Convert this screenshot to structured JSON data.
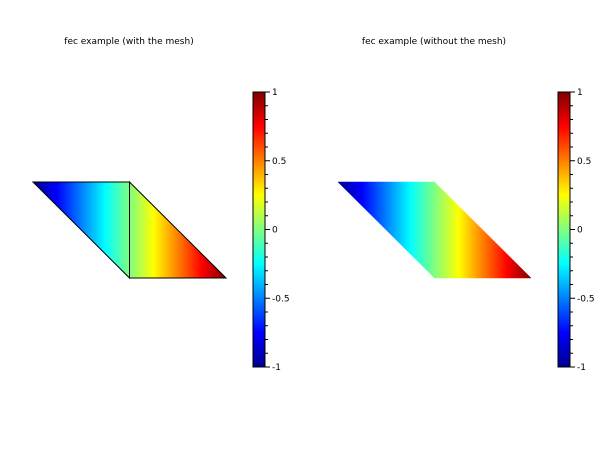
{
  "chart_data": [
    {
      "type": "heatmap",
      "subtype": "fec",
      "title": "fec example (with the mesh)",
      "mesh": true,
      "nodes": {
        "x": [
          -1,
          0,
          1,
          0
        ],
        "y": [
          1,
          1,
          0,
          0
        ],
        "values": [
          -1,
          0,
          1,
          0
        ]
      },
      "triangles": [
        [
          0,
          1,
          3
        ],
        [
          1,
          2,
          3
        ]
      ],
      "colorbar": {
        "range": [
          -1,
          1
        ],
        "ticks": [
          1,
          0.5,
          0,
          -0.5,
          -1
        ],
        "tick_labels": [
          "1",
          "0.5",
          "0",
          "-0.5",
          "-1"
        ],
        "colormap": "jet"
      }
    },
    {
      "type": "heatmap",
      "subtype": "fec",
      "title": "fec example (without the mesh)",
      "mesh": false,
      "nodes": {
        "x": [
          -1,
          0,
          1,
          0
        ],
        "y": [
          1,
          1,
          0,
          0
        ],
        "values": [
          -1,
          0,
          1,
          0
        ]
      },
      "triangles": [
        [
          0,
          1,
          3
        ],
        [
          1,
          2,
          3
        ]
      ],
      "colorbar": {
        "range": [
          -1,
          1
        ],
        "ticks": [
          1,
          0.5,
          0,
          -0.5,
          -1
        ],
        "tick_labels": [
          "1",
          "0.5",
          "0",
          "-0.5",
          "-1"
        ],
        "colormap": "jet"
      }
    }
  ],
  "colors": {
    "jet": [
      "#00008F",
      "#0000FF",
      "#00FFFF",
      "#FFFF00",
      "#FF0000",
      "#800000"
    ]
  }
}
